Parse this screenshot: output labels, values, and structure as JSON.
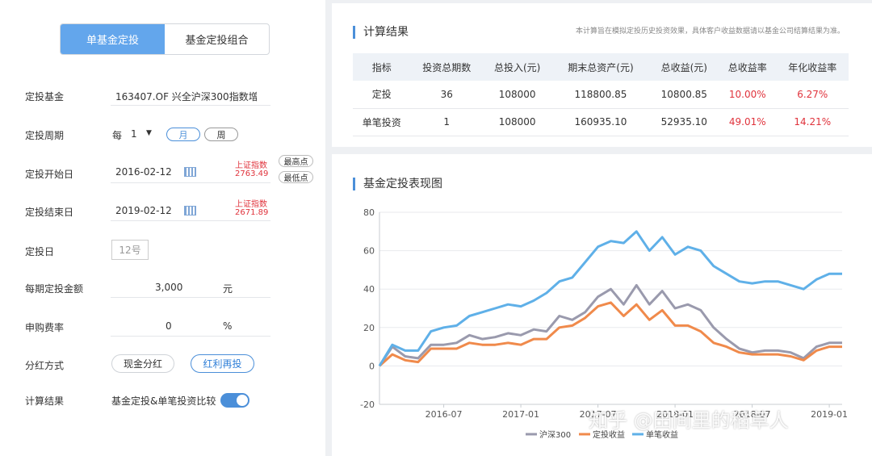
{
  "tabs": [
    "单基金定投",
    "基金定投组合"
  ],
  "form": {
    "fund_label": "定投基金",
    "fund_value": "163407.OF 兴全沪深300指数增",
    "period_label": "定投周期",
    "period_prefix": "每",
    "period_num": "1",
    "period_arrow": "▼",
    "period_month": "月",
    "period_week": "周",
    "start_label": "定投开始日",
    "start_date": "2016-02-12",
    "start_index_name": "上证指数",
    "start_index_val": "2763.49",
    "btn_high": "最高点",
    "btn_low": "最低点",
    "end_label": "定投结束日",
    "end_date": "2019-02-12",
    "end_index_name": "上证指数",
    "end_index_val": "2671.89",
    "day_label": "定投日",
    "day_value": "12号",
    "amount_label": "每期定投金额",
    "amount_value": "3,000",
    "amount_unit": "元",
    "fee_label": "申购费率",
    "fee_value": "0",
    "fee_unit": "%",
    "div_label": "分红方式",
    "div_cash": "现金分红",
    "div_reinvest": "红利再投",
    "calc_label": "计算结果",
    "calc_value": "基金定投&单笔投资比较"
  },
  "results": {
    "title": "计算结果",
    "note": "本计算旨在模拟定投历史投资效果，具体客户收益数据请以基金公司结算结果为准。",
    "headers": [
      "指标",
      "投资总期数",
      "总投入(元)",
      "期末总资产(元)",
      "总收益(元)",
      "总收益率",
      "年化收益率"
    ],
    "rows": [
      [
        "定投",
        "36",
        "108000",
        "118800.85",
        "10800.85",
        "10.00%",
        "6.27%"
      ],
      [
        "单笔投资",
        "1",
        "108000",
        "160935.10",
        "52935.10",
        "49.01%",
        "14.21%"
      ]
    ]
  },
  "chart_title": "基金定投表现图",
  "watermark": "知乎 @田间里的稻草人",
  "chart_data": {
    "type": "line",
    "ylim": [
      -20,
      80
    ],
    "yticks": [
      -20,
      0,
      20,
      40,
      60,
      80
    ],
    "xticks": [
      "2016-07",
      "2017-01",
      "2017-07",
      "2018-01",
      "2018-07",
      "2019-01"
    ],
    "xrange": [
      "2016-02",
      "2019-02"
    ],
    "x": [
      "2016-02",
      "2016-03",
      "2016-04",
      "2016-05",
      "2016-06",
      "2016-07",
      "2016-08",
      "2016-09",
      "2016-10",
      "2016-11",
      "2016-12",
      "2017-01",
      "2017-02",
      "2017-03",
      "2017-04",
      "2017-05",
      "2017-06",
      "2017-07",
      "2017-08",
      "2017-09",
      "2017-10",
      "2017-11",
      "2017-12",
      "2018-01",
      "2018-02",
      "2018-03",
      "2018-04",
      "2018-05",
      "2018-06",
      "2018-07",
      "2018-08",
      "2018-09",
      "2018-10",
      "2018-11",
      "2018-12",
      "2019-01",
      "2019-02"
    ],
    "series": [
      {
        "name": "沪深300",
        "color": "#9a9aad",
        "values": [
          0,
          10,
          5,
          4,
          11,
          11,
          12,
          16,
          14,
          15,
          17,
          16,
          19,
          18,
          26,
          24,
          28,
          36,
          40,
          32,
          42,
          32,
          39,
          30,
          32,
          29,
          20,
          14,
          9,
          7,
          8,
          8,
          7,
          4,
          10,
          12,
          12
        ]
      },
      {
        "name": "定投收益",
        "color": "#f08a4b",
        "values": [
          0,
          6,
          3,
          2,
          9,
          9,
          9,
          12,
          11,
          11,
          12,
          11,
          14,
          14,
          20,
          21,
          25,
          31,
          33,
          26,
          32,
          24,
          29,
          21,
          21,
          18,
          12,
          10,
          7,
          6,
          6,
          6,
          5,
          3,
          8,
          10,
          10
        ]
      },
      {
        "name": "单笔收益",
        "color": "#5fb0e8",
        "values": [
          0,
          11,
          8,
          8,
          18,
          20,
          21,
          26,
          28,
          30,
          32,
          31,
          34,
          38,
          44,
          46,
          54,
          62,
          65,
          64,
          70,
          60,
          67,
          58,
          62,
          60,
          52,
          48,
          44,
          43,
          44,
          44,
          42,
          40,
          45,
          48,
          48
        ]
      }
    ]
  }
}
